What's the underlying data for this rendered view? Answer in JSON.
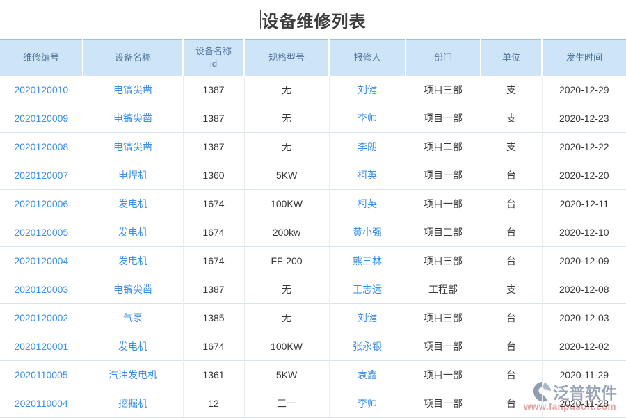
{
  "page": {
    "title": "设备维修列表"
  },
  "watermark": {
    "brand": "泛普软件",
    "url": "www.fanpusoft.com"
  },
  "colors": {
    "header_bg": "#cde5f6",
    "header_text": "#51749c",
    "table_top_border": "#94c2e6",
    "row_border": "#dbe4ee",
    "link": "#3a8ee8",
    "body_text": "#383838",
    "watermark_brand": "#7e8da3",
    "watermark_url": "#d88c8c"
  },
  "table": {
    "link_columns": [
      "repair_no",
      "device_name",
      "reporter"
    ],
    "columns": [
      {
        "key": "repair_no",
        "label": "维修编号"
      },
      {
        "key": "device_name",
        "label": "设备名称"
      },
      {
        "key": "device_name_id",
        "label": "设备名称\nid"
      },
      {
        "key": "spec_model",
        "label": "规格型号"
      },
      {
        "key": "reporter",
        "label": "报修人"
      },
      {
        "key": "department",
        "label": "部门"
      },
      {
        "key": "unit",
        "label": "单位"
      },
      {
        "key": "occur_time",
        "label": "发生时间"
      }
    ],
    "rows": [
      {
        "repair_no": "2020120010",
        "device_name": "电镐尖凿",
        "device_name_id": "1387",
        "spec_model": "无",
        "reporter": "刘健",
        "department": "项目三部",
        "unit": "支",
        "occur_time": "2020-12-29"
      },
      {
        "repair_no": "2020120009",
        "device_name": "电镐尖凿",
        "device_name_id": "1387",
        "spec_model": "无",
        "reporter": "李帅",
        "department": "项目一部",
        "unit": "支",
        "occur_time": "2020-12-23"
      },
      {
        "repair_no": "2020120008",
        "device_name": "电镐尖凿",
        "device_name_id": "1387",
        "spec_model": "无",
        "reporter": "李朗",
        "department": "项目二部",
        "unit": "支",
        "occur_time": "2020-12-22"
      },
      {
        "repair_no": "2020120007",
        "device_name": "电焊机",
        "device_name_id": "1360",
        "spec_model": "5KW",
        "reporter": "柯英",
        "department": "项目一部",
        "unit": "台",
        "occur_time": "2020-12-20"
      },
      {
        "repair_no": "2020120006",
        "device_name": "发电机",
        "device_name_id": "1674",
        "spec_model": "100KW",
        "reporter": "柯英",
        "department": "项目一部",
        "unit": "台",
        "occur_time": "2020-12-11"
      },
      {
        "repair_no": "2020120005",
        "device_name": "发电机",
        "device_name_id": "1674",
        "spec_model": "200kw",
        "reporter": "黄小强",
        "department": "项目三部",
        "unit": "台",
        "occur_time": "2020-12-10"
      },
      {
        "repair_no": "2020120004",
        "device_name": "发电机",
        "device_name_id": "1674",
        "spec_model": "FF-200",
        "reporter": "熊三林",
        "department": "项目三部",
        "unit": "台",
        "occur_time": "2020-12-09"
      },
      {
        "repair_no": "2020120003",
        "device_name": "电镐尖凿",
        "device_name_id": "1387",
        "spec_model": "无",
        "reporter": "王志远",
        "department": "工程部",
        "unit": "支",
        "occur_time": "2020-12-08"
      },
      {
        "repair_no": "2020120002",
        "device_name": "气泵",
        "device_name_id": "1385",
        "spec_model": "无",
        "reporter": "刘健",
        "department": "项目三部",
        "unit": "台",
        "occur_time": "2020-12-03"
      },
      {
        "repair_no": "2020120001",
        "device_name": "发电机",
        "device_name_id": "1674",
        "spec_model": "100KW",
        "reporter": "张永银",
        "department": "项目一部",
        "unit": "台",
        "occur_time": "2020-12-02"
      },
      {
        "repair_no": "2020110005",
        "device_name": "汽油发电机",
        "device_name_id": "1361",
        "spec_model": "5KW",
        "reporter": "袁鑫",
        "department": "项目一部",
        "unit": "台",
        "occur_time": "2020-11-29"
      },
      {
        "repair_no": "2020110004",
        "device_name": "挖掘机",
        "device_name_id": "12",
        "spec_model": "三一",
        "reporter": "李帅",
        "department": "项目一部",
        "unit": "台",
        "occur_time": "2020-11-28"
      }
    ]
  }
}
